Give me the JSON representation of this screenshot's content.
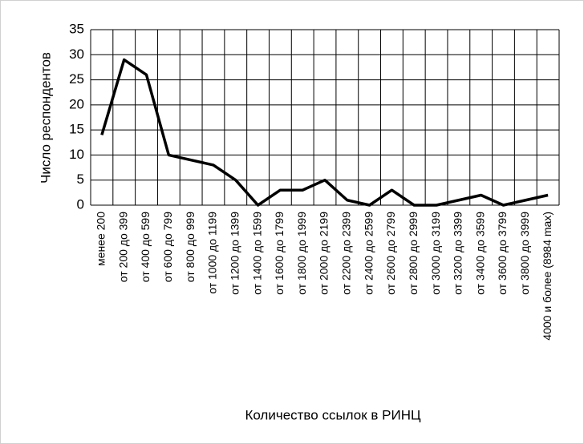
{
  "chart_data": {
    "type": "line",
    "x_label": "Количество ссылок в РИНЦ",
    "y_label": "Число респондентов",
    "categories": [
      "менее 200",
      "от 200 до 399",
      "от 400 до 599",
      "от 600 до 799",
      "от 800 до 999",
      "от 1000 до 1199",
      "от 1200 до 1399",
      "от 1400 до 1599",
      "от 1600 до 1799",
      "от 1800 до 1999",
      "от 2000 до 2199",
      "от 2200 до 2399",
      "от 2400 до 2599",
      "от 2600 до 2799",
      "от 2800 до 2999",
      "от 3000 до 3199",
      "от 3200 до 3399",
      "от 3400 до 3599",
      "от 3600 до 3799",
      "от 3800 до 3999",
      "4000 и более (8984 max)"
    ],
    "values": [
      14,
      29,
      26,
      10,
      9,
      8,
      5,
      0,
      3,
      3,
      5,
      1,
      0,
      3,
      0,
      0,
      1,
      2,
      0,
      1,
      2
    ],
    "color": "#000000",
    "ylim": [
      0,
      35
    ],
    "yticks": [
      0,
      5,
      10,
      15,
      20,
      25,
      30,
      35
    ],
    "grid": true
  }
}
